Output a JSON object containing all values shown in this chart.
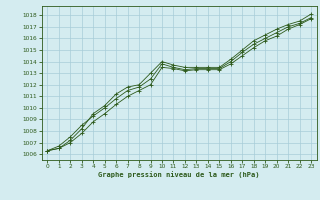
{
  "title": "Graphe pression niveau de la mer (hPa)",
  "bg_color": "#d4ecf0",
  "grid_color": "#a8cdd8",
  "line_color": "#2d5a1b",
  "marker_color": "#2d5a1b",
  "x_ticks": [
    0,
    1,
    2,
    3,
    4,
    5,
    6,
    7,
    8,
    9,
    10,
    11,
    12,
    13,
    14,
    15,
    16,
    17,
    18,
    19,
    20,
    21,
    22,
    23
  ],
  "y_ticks": [
    1006,
    1007,
    1008,
    1009,
    1010,
    1011,
    1012,
    1013,
    1014,
    1015,
    1016,
    1017,
    1018
  ],
  "ylim": [
    1005.5,
    1018.8
  ],
  "xlim": [
    -0.5,
    23.5
  ],
  "line1": [
    1006.3,
    1006.5,
    1007.2,
    1008.2,
    1009.5,
    1010.2,
    1011.2,
    1011.8,
    1012.0,
    1013.0,
    1014.0,
    1013.7,
    1013.5,
    1013.5,
    1013.5,
    1013.5,
    1014.2,
    1015.0,
    1015.8,
    1016.3,
    1016.8,
    1017.2,
    1017.5,
    1018.1
  ],
  "line2": [
    1006.3,
    1006.7,
    1007.5,
    1008.5,
    1009.3,
    1010.0,
    1010.8,
    1011.5,
    1011.8,
    1012.5,
    1013.8,
    1013.5,
    1013.3,
    1013.4,
    1013.4,
    1013.4,
    1014.0,
    1014.8,
    1015.5,
    1016.0,
    1016.5,
    1017.0,
    1017.3,
    1017.8
  ],
  "line3": [
    1006.3,
    1006.5,
    1007.0,
    1007.8,
    1008.8,
    1009.5,
    1010.3,
    1011.0,
    1011.5,
    1012.0,
    1013.5,
    1013.4,
    1013.2,
    1013.3,
    1013.3,
    1013.3,
    1013.8,
    1014.5,
    1015.2,
    1015.8,
    1016.2,
    1016.8,
    1017.2,
    1017.7
  ]
}
